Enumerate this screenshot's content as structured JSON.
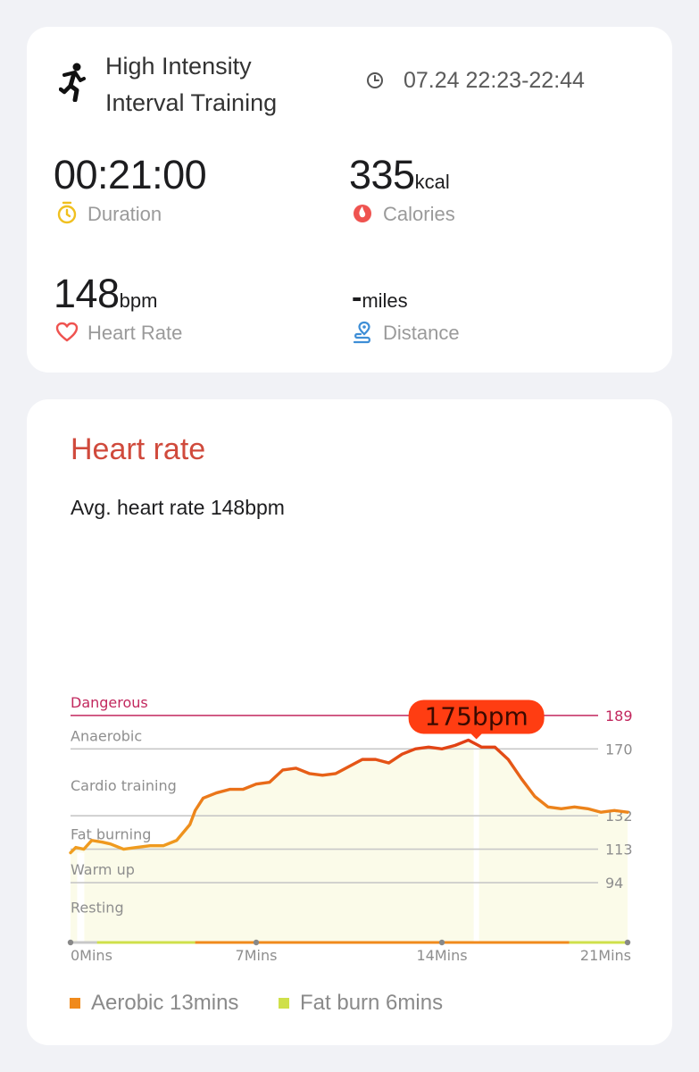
{
  "summary": {
    "title_line1": "High Intensity",
    "title_line2": "Interval Training",
    "time_range": "07.24 22:23-22:44",
    "duration": {
      "value": "00:21:00",
      "label": "Duration"
    },
    "calories": {
      "value": "335",
      "unit": "kcal",
      "label": "Calories"
    },
    "heart_rate": {
      "value": "148",
      "unit": "bpm",
      "label": "Heart Rate"
    },
    "distance": {
      "value": "-",
      "unit": "miles",
      "label": "Distance"
    }
  },
  "heart_card": {
    "title": "Heart rate",
    "avg_text": "Avg. heart rate 148bpm",
    "tooltip": "175bpm",
    "legend": [
      {
        "label": "Aerobic 13mins",
        "color": "#f08a1c"
      },
      {
        "label": "Fat burn 6mins",
        "color": "#cfe04a"
      }
    ]
  },
  "colors": {
    "accent_red": "#d04a3c",
    "dangerous": "#c2285e",
    "aerobic": "#f08a1c",
    "fat_burn": "#cfe04a",
    "fill": "#fbfbe9",
    "tooltip": "#ff3d12"
  },
  "icons": {
    "workout": "running-person-icon",
    "time": "clock-icon",
    "duration": "stopwatch-icon",
    "calories": "flame-icon",
    "heart": "heart-icon",
    "distance": "route-pin-icon"
  },
  "chart_data": {
    "type": "line",
    "ylim": [
      60,
      195
    ],
    "xlim": [
      0,
      21
    ],
    "x_tick_labels": [
      "0Mins",
      "7Mins",
      "14Mins",
      "21Mins"
    ],
    "x_ticks": [
      0,
      7,
      14,
      21
    ],
    "zones": [
      {
        "name": "Dangerous",
        "threshold": 189
      },
      {
        "name": "Anaerobic",
        "threshold": 170
      },
      {
        "name": "Cardio training",
        "threshold": 132
      },
      {
        "name": "Fat burning",
        "threshold": 113
      },
      {
        "name": "Warm up",
        "threshold": 94
      },
      {
        "name": "Resting",
        "threshold": null
      }
    ],
    "right_ticks": [
      189,
      170,
      132,
      113,
      94
    ],
    "series": [
      {
        "x": [
          0,
          0.2,
          0.5,
          0.8,
          1.2,
          1.5,
          2.0,
          2.5,
          3.0,
          3.5,
          4.0,
          4.5,
          4.7,
          5.0,
          5.5,
          6.0,
          6.5,
          7.0,
          7.5,
          8.0,
          8.5,
          9.0,
          9.5,
          10.0,
          10.5,
          11.0,
          11.5,
          12.0,
          12.5,
          13.0,
          13.5,
          14.0,
          14.5,
          15.0,
          15.5,
          16.0,
          16.5,
          17.0,
          17.5,
          18.0,
          18.5,
          19.0,
          19.5,
          20.0,
          20.5,
          21.0
        ],
        "y": [
          111,
          114,
          113,
          118,
          117,
          116,
          113,
          114,
          115,
          115,
          118,
          127,
          135,
          142,
          145,
          147,
          147,
          150,
          151,
          158,
          159,
          156,
          155,
          156,
          160,
          164,
          164,
          162,
          167,
          170,
          171,
          170,
          172,
          175,
          171,
          171,
          164,
          153,
          143,
          137,
          136,
          137,
          136,
          134,
          135,
          134
        ]
      }
    ],
    "tooltip_point": {
      "x": 15.3,
      "y": 175
    }
  }
}
